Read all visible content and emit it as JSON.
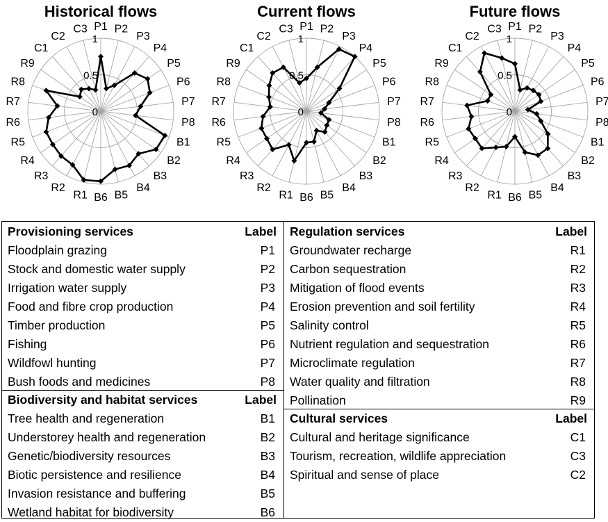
{
  "chart_data": [
    {
      "type": "radar",
      "title": "Historical flows",
      "axes": [
        "P1",
        "P2",
        "P3",
        "P4",
        "P5",
        "P6",
        "P7",
        "P8",
        "B1",
        "B2",
        "B3",
        "B4",
        "B5",
        "B6",
        "R1",
        "R2",
        "R3",
        "R4",
        "R5",
        "R6",
        "R7",
        "R8",
        "R9",
        "C1",
        "C2",
        "C3"
      ],
      "radial_ticks": [
        "0",
        "0.5",
        "1"
      ],
      "range": [
        0,
        1
      ],
      "values": [
        0.75,
        0.32,
        0.4,
        0.7,
        0.78,
        0.72,
        0.55,
        0.48,
        0.94,
        0.92,
        0.78,
        0.84,
        0.82,
        0.96,
        0.97,
        0.83,
        0.82,
        0.8,
        0.8,
        0.72,
        0.6,
        0.8,
        0.35,
        0.4,
        0.35,
        0.3
      ]
    },
    {
      "type": "radar",
      "title": "Current flows",
      "axes": [
        "P1",
        "P2",
        "P3",
        "P4",
        "P5",
        "P6",
        "P7",
        "P8",
        "B1",
        "B2",
        "B3",
        "B4",
        "B5",
        "B6",
        "R1",
        "R2",
        "R3",
        "R4",
        "R5",
        "R6",
        "R7",
        "R8",
        "R9",
        "C1",
        "C2",
        "C3"
      ],
      "radial_ticks": [
        "0",
        "0.5",
        "1"
      ],
      "range": [
        0,
        1
      ],
      "values": [
        0.45,
        0.62,
        0.96,
        1.0,
        0.55,
        0.33,
        0.25,
        0.2,
        0.33,
        0.34,
        0.38,
        0.3,
        0.43,
        0.43,
        0.7,
        0.52,
        0.7,
        0.66,
        0.66,
        0.6,
        0.5,
        0.55,
        0.62,
        0.7,
        0.68,
        0.4
      ]
    },
    {
      "type": "radar",
      "title": "Future flows",
      "axes": [
        "P1",
        "P2",
        "P3",
        "P4",
        "P5",
        "P6",
        "P7",
        "P8",
        "B1",
        "B2",
        "B3",
        "B4",
        "B5",
        "B6",
        "R1",
        "R2",
        "R3",
        "R4",
        "R5",
        "R6",
        "R7",
        "R8",
        "R9",
        "C1",
        "C2",
        "C3"
      ],
      "radial_ticks": [
        "0",
        "0.5",
        "1"
      ],
      "range": [
        0,
        1
      ],
      "values": [
        0.65,
        0.3,
        0.36,
        0.38,
        0.4,
        0.38,
        0.18,
        0.3,
        0.38,
        0.55,
        0.68,
        0.68,
        0.58,
        0.35,
        0.5,
        0.56,
        0.68,
        0.66,
        0.68,
        0.6,
        0.66,
        0.4,
        0.4,
        0.72,
        0.9,
        0.75
      ]
    }
  ],
  "table": {
    "provisioning": {
      "heading": "Provisioning services",
      "label_heading": "Label",
      "rows": [
        {
          "name": "Floodplain grazing",
          "label": "P1"
        },
        {
          "name": "Stock and domestic water supply",
          "label": "P2"
        },
        {
          "name": "Irrigation water supply",
          "label": "P3"
        },
        {
          "name": "Food and fibre crop production",
          "label": "P4"
        },
        {
          "name": "Timber production",
          "label": "P5"
        },
        {
          "name": "Fishing",
          "label": "P6"
        },
        {
          "name": "Wildfowl hunting",
          "label": "P7"
        },
        {
          "name": "Bush foods and medicines",
          "label": "P8"
        }
      ]
    },
    "biodiversity": {
      "heading": "Biodiversity and habitat services",
      "label_heading": "Label",
      "rows": [
        {
          "name": "Tree health and regeneration",
          "label": "B1"
        },
        {
          "name": "Understorey health and regeneration",
          "label": "B2"
        },
        {
          "name": "Genetic/biodiversity resources",
          "label": "B3"
        },
        {
          "name": "Biotic persistence and resilience",
          "label": "B4"
        },
        {
          "name": "Invasion resistance and buffering",
          "label": "B5"
        },
        {
          "name": "Wetland habitat for biodiversity",
          "label": "B6"
        }
      ]
    },
    "regulation": {
      "heading": "Regulation services",
      "label_heading": "Label",
      "rows": [
        {
          "name": "Groundwater recharge",
          "label": "R1"
        },
        {
          "name": "Carbon sequestration",
          "label": "R2"
        },
        {
          "name": "Mitigation of flood events",
          "label": "R3"
        },
        {
          "name": "Erosion prevention and soil fertility",
          "label": "R4"
        },
        {
          "name": "Salinity control",
          "label": "R5"
        },
        {
          "name": "Nutrient regulation and sequestration",
          "label": "R6"
        },
        {
          "name": "Microclimate regulation",
          "label": "R7"
        },
        {
          "name": "Water quality and filtration",
          "label": "R8"
        },
        {
          "name": "Pollination",
          "label": "R9"
        }
      ]
    },
    "cultural": {
      "heading": "Cultural services",
      "label_heading": "Label",
      "rows": [
        {
          "name": "Cultural and heritage significance",
          "label": "C1"
        },
        {
          "name": "Tourism, recreation, wildlife appreciation",
          "label": "C3"
        },
        {
          "name": "Spiritual and sense of place",
          "label": "C2"
        }
      ]
    }
  }
}
